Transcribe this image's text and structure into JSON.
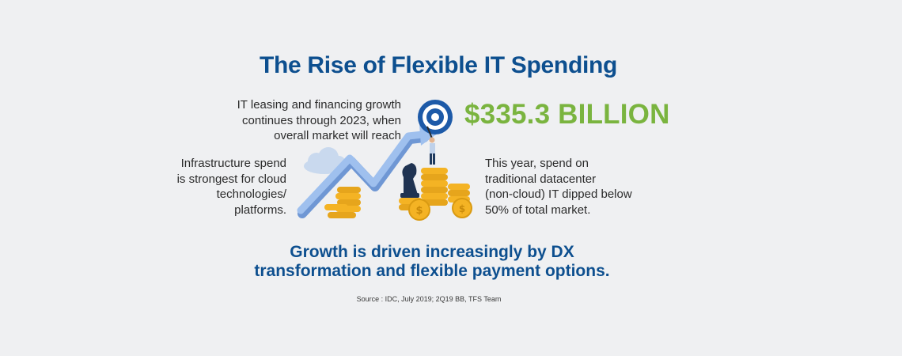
{
  "title": "The Rise of Flexible IT Spending",
  "leasing": {
    "lines": [
      "IT leasing and financing growth",
      "continues through 2023, when",
      "overall market will reach"
    ]
  },
  "big_number": "$335.3 BILLION",
  "infrastructure": {
    "lines": [
      "Infrastructure spend",
      "is strongest for cloud",
      "technologies/",
      "platforms."
    ]
  },
  "datacenter": {
    "lines": [
      "This year, spend on",
      "traditional datacenter",
      "(non-cloud) IT dipped below",
      "50% of total market."
    ]
  },
  "conclusion": {
    "lines": [
      "Growth is driven increasingly by DX",
      "transformation and flexible payment options."
    ]
  },
  "source": "Source : IDC, July 2019; 2Q19 BB, TFS Team",
  "colors": {
    "title_blue": "#0d4f8f",
    "accent_green": "#7ab43f",
    "arrow_blue": "#8fb4e8",
    "coin_gold": "#f4b324"
  }
}
